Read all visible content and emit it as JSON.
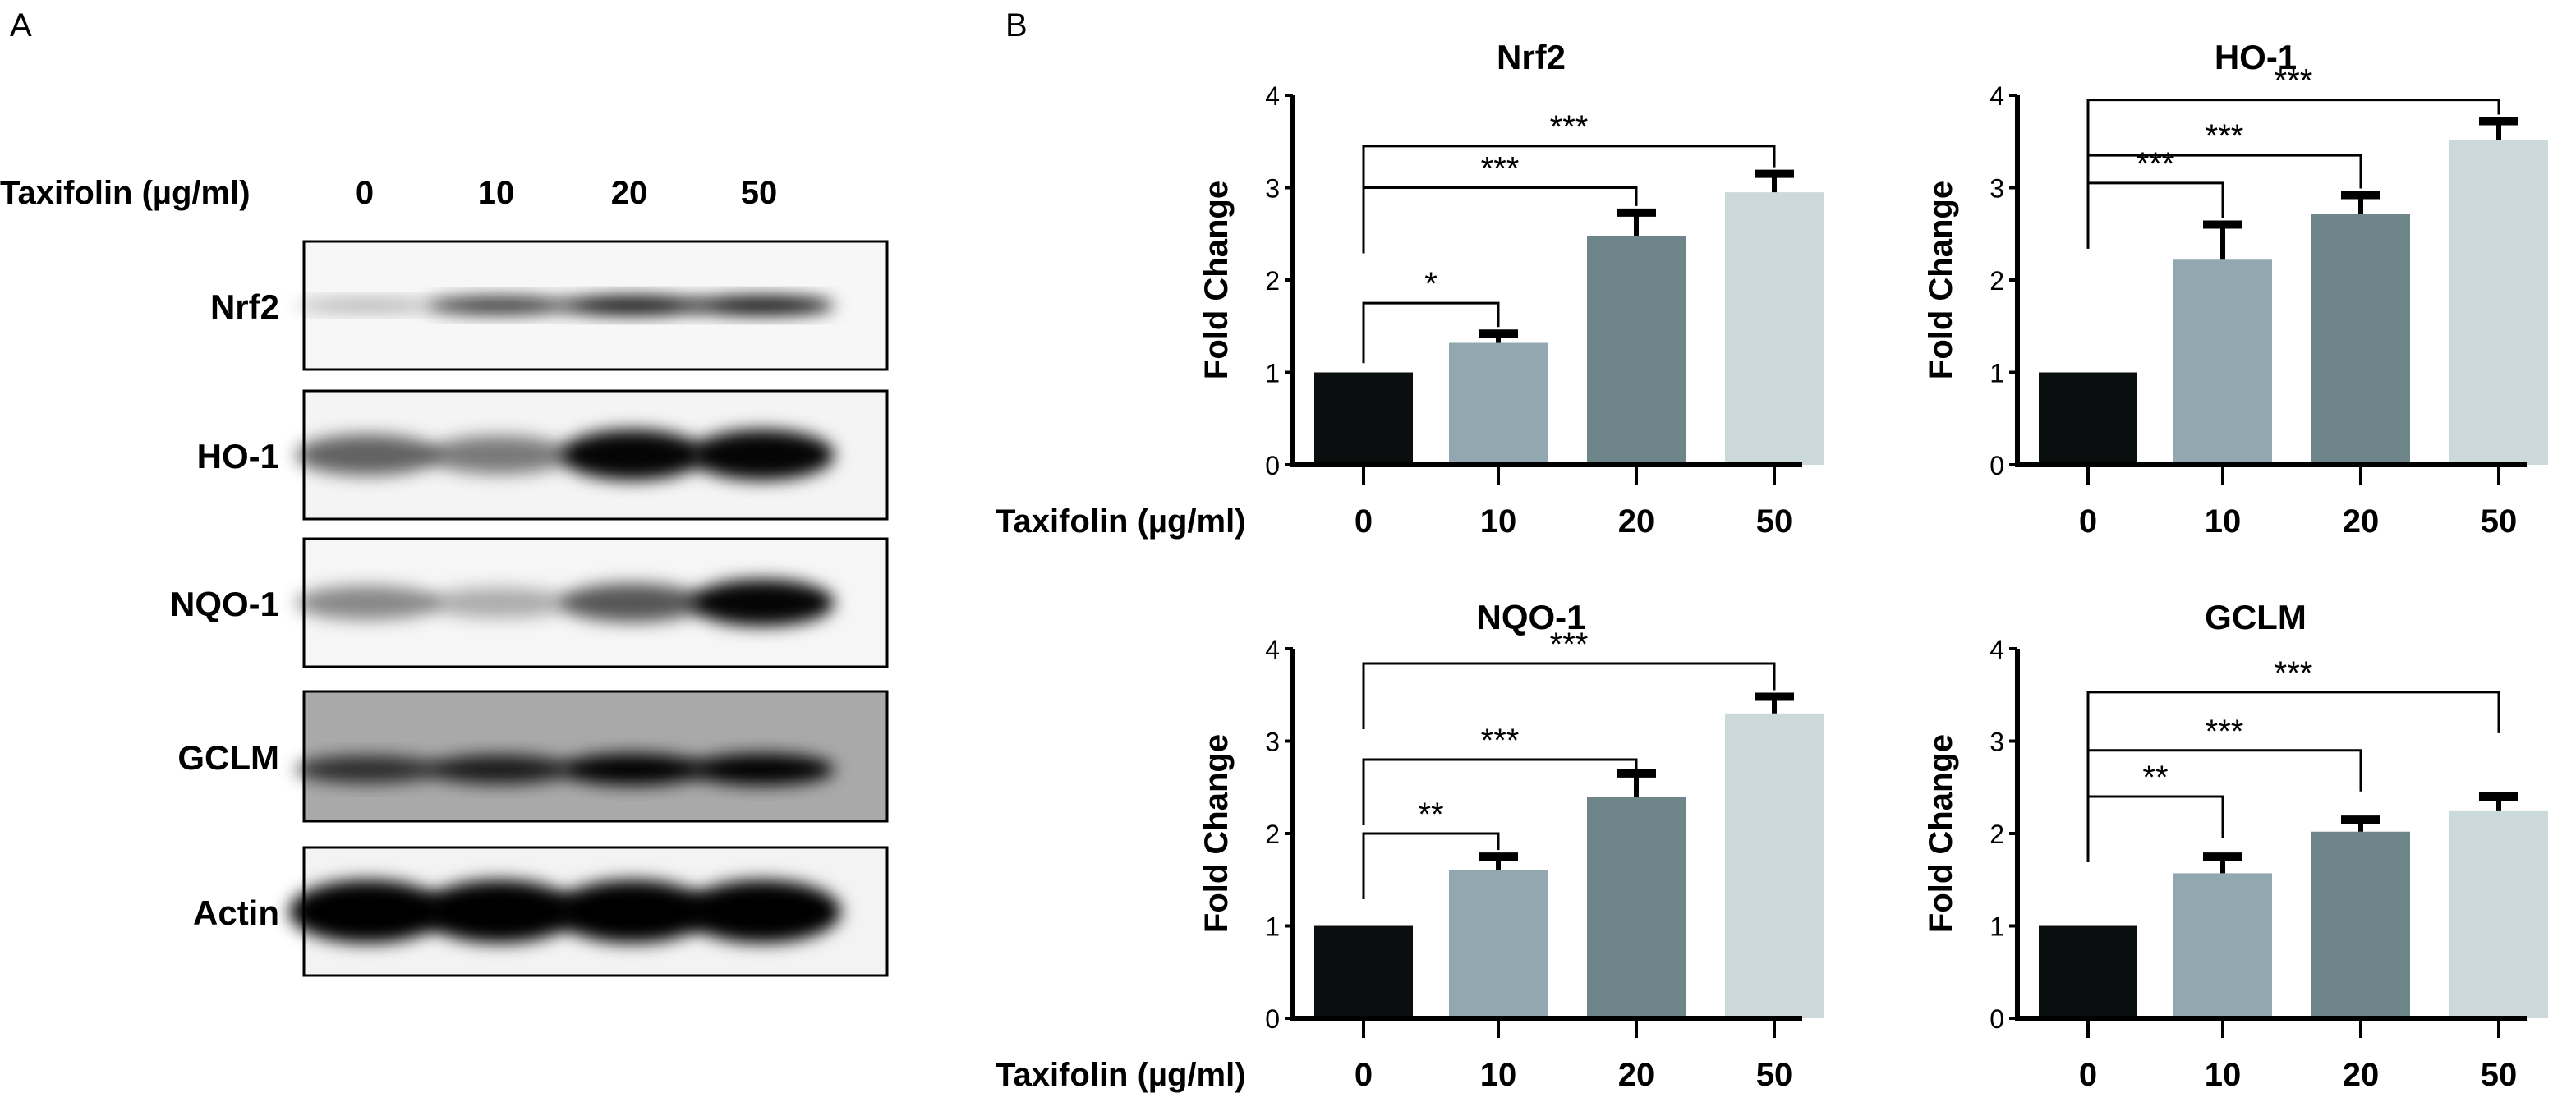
{
  "panel_a": {
    "label": "A",
    "treatment_label": "Taxifolin (µg/ml)",
    "lanes": [
      "0",
      "10",
      "20",
      "50"
    ],
    "blots": [
      "Nrf2",
      "HO-1",
      "NQO-1",
      "GCLM",
      "Actin"
    ]
  },
  "panel_b": {
    "label": "B",
    "treatment_label": "Taxifolin (µg/ml)"
  },
  "colors": {
    "bars": [
      "#0b0e0e",
      "#93a7b1",
      "#6e858a",
      "#ccd9da"
    ],
    "axis": "#000000"
  },
  "chart_data": [
    {
      "type": "bar",
      "title": "Nrf2",
      "ylabel": "Fold Change",
      "categories": [
        "0",
        "10",
        "20",
        "50"
      ],
      "values": [
        1.0,
        1.32,
        2.48,
        2.95
      ],
      "errors": [
        0,
        0.1,
        0.25,
        0.2
      ],
      "ylim": [
        0,
        4
      ],
      "yticks": [
        "0",
        "1",
        "2",
        "3",
        "4"
      ],
      "significance": [
        {
          "from": "0",
          "to": "10",
          "label": "*",
          "y": 1.75
        },
        {
          "from": "0",
          "to": "20",
          "label": "***",
          "y": 3.0
        },
        {
          "from": "0",
          "to": "50",
          "label": "***",
          "y": 3.45
        }
      ]
    },
    {
      "type": "bar",
      "title": "HO-1",
      "ylabel": "Fold Change",
      "categories": [
        "0",
        "10",
        "20",
        "50"
      ],
      "values": [
        1.0,
        2.22,
        2.72,
        3.52
      ],
      "errors": [
        0,
        0.38,
        0.2,
        0.2
      ],
      "ylim": [
        0,
        4
      ],
      "yticks": [
        "0",
        "1",
        "2",
        "3",
        "4"
      ],
      "significance": [
        {
          "from": "0",
          "to": "10",
          "label": "***",
          "y": 3.05
        },
        {
          "from": "0",
          "to": "20",
          "label": "***",
          "y": 3.35
        },
        {
          "from": "0",
          "to": "50",
          "label": "***",
          "y": 3.95
        }
      ]
    },
    {
      "type": "bar",
      "title": "NQO-1",
      "ylabel": "Fold Change",
      "categories": [
        "0",
        "10",
        "20",
        "50"
      ],
      "values": [
        1.0,
        1.6,
        2.4,
        3.3
      ],
      "errors": [
        0,
        0.15,
        0.25,
        0.18
      ],
      "ylim": [
        0,
        4
      ],
      "yticks": [
        "0",
        "1",
        "2",
        "3",
        "4"
      ],
      "significance": [
        {
          "from": "0",
          "to": "10",
          "label": "**",
          "y": 2.0
        },
        {
          "from": "0",
          "to": "20",
          "label": "***",
          "y": 2.8
        },
        {
          "from": "0",
          "to": "50",
          "label": "***",
          "y": 3.84
        }
      ]
    },
    {
      "type": "bar",
      "title": "GCLM",
      "ylabel": "Fold Change",
      "categories": [
        "0",
        "10",
        "20",
        "50"
      ],
      "values": [
        1.0,
        1.57,
        2.02,
        2.25
      ],
      "errors": [
        0,
        0.18,
        0.13,
        0.15
      ],
      "ylim": [
        0,
        4
      ],
      "yticks": [
        "0",
        "1",
        "2",
        "3",
        "4"
      ],
      "significance": [
        {
          "from": "0",
          "to": "10",
          "label": "**",
          "y": 2.4
        },
        {
          "from": "0",
          "to": "20",
          "label": "***",
          "y": 2.9
        },
        {
          "from": "0",
          "to": "50",
          "label": "***",
          "y": 3.53
        }
      ]
    }
  ]
}
